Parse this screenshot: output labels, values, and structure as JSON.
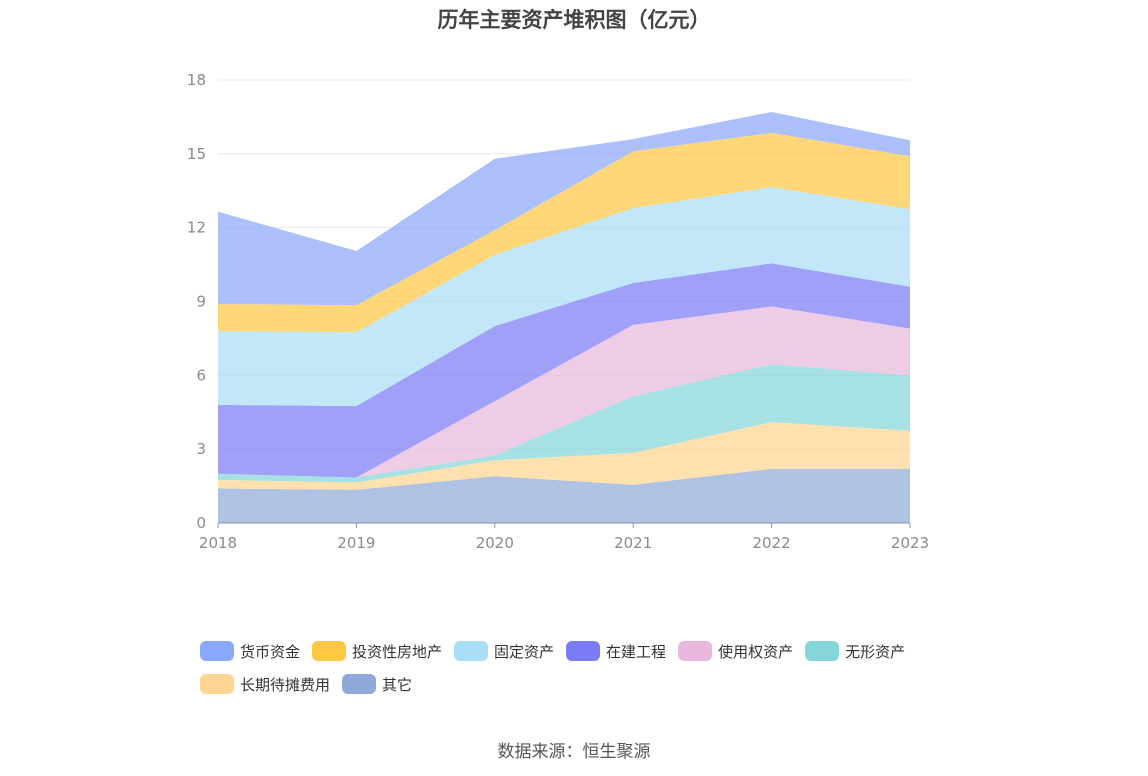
{
  "chart_data": {
    "type": "area",
    "stacked": true,
    "title": "历年主要资产堆积图（亿元）",
    "x": [
      "2018",
      "2019",
      "2020",
      "2021",
      "2022",
      "2023"
    ],
    "ylim": [
      0,
      18
    ],
    "yticks": [
      0,
      3,
      6,
      9,
      12,
      15,
      18
    ],
    "grid": true,
    "legend_position": "bottom",
    "series": [
      {
        "name": "其它",
        "color": "#8faad8",
        "values": [
          1.4,
          1.35,
          1.9,
          1.55,
          2.2,
          2.2
        ]
      },
      {
        "name": "长期待摊费用",
        "color": "#ffd591",
        "values": [
          0.35,
          0.3,
          0.65,
          1.3,
          1.9,
          1.55
        ]
      },
      {
        "name": "无形资产",
        "color": "#84d6d8",
        "values": [
          0.25,
          0.2,
          0.2,
          2.3,
          2.35,
          2.25
        ]
      },
      {
        "name": "使用权资产",
        "color": "#e8b8dc",
        "values": [
          0.0,
          0.0,
          2.2,
          2.9,
          2.35,
          1.9
        ]
      },
      {
        "name": "在建工程",
        "color": "#7b7bf5",
        "values": [
          2.8,
          2.9,
          3.05,
          1.7,
          1.75,
          1.7
        ]
      },
      {
        "name": "固定资产",
        "color": "#a9def7",
        "values": [
          3.0,
          3.0,
          2.9,
          3.05,
          3.1,
          3.15
        ]
      },
      {
        "name": "投资性房地产",
        "color": "#ffc844",
        "values": [
          1.1,
          1.1,
          1.0,
          2.3,
          2.2,
          2.15
        ]
      },
      {
        "name": "货币资金",
        "color": "#8aa8fb",
        "values": [
          3.75,
          2.2,
          2.9,
          0.5,
          0.85,
          0.65
        ]
      }
    ]
  },
  "source_note": "数据来源：恒生聚源"
}
